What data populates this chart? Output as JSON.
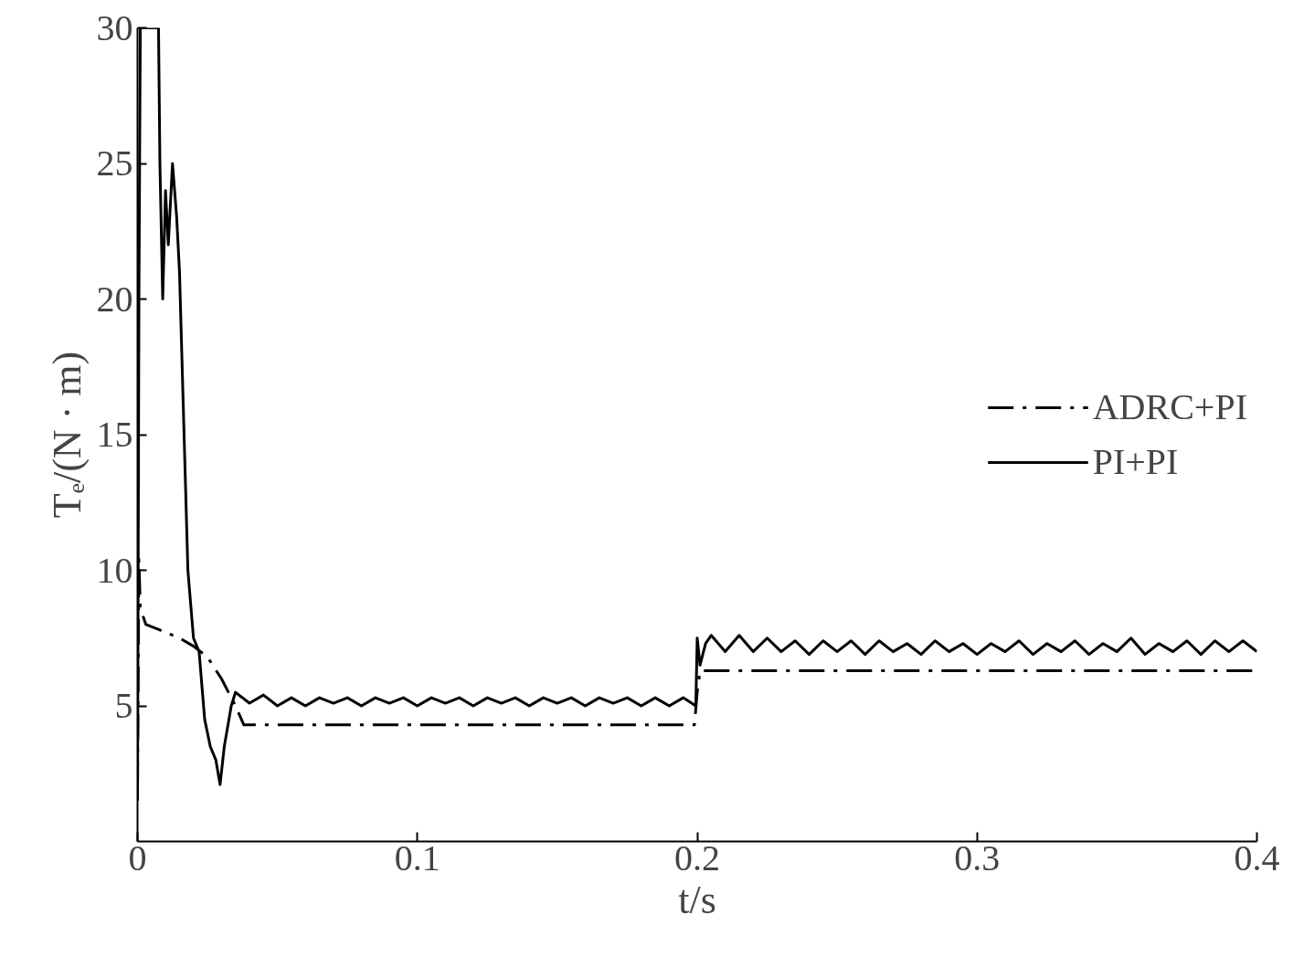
{
  "chart_data": {
    "type": "line",
    "xlabel": "t/s",
    "ylabel": "Tₑ/(N · m)",
    "xlim": [
      0,
      0.4
    ],
    "ylim": [
      0,
      30
    ],
    "xticks": [
      0,
      0.1,
      0.2,
      0.3,
      0.4
    ],
    "yticks": [
      5,
      10,
      15,
      20,
      25,
      30
    ],
    "grid": false,
    "legend": "right",
    "series": [
      {
        "name": "ADRC+PI",
        "color": "#000000",
        "line_style": "dashdot",
        "x": [
          0,
          0.0005,
          0.001,
          0.003,
          0.008,
          0.015,
          0.02,
          0.025,
          0.03,
          0.035,
          0.038,
          0.1,
          0.199,
          0.2,
          0.201,
          0.203,
          0.3,
          0.4
        ],
        "values": [
          2,
          10.4,
          8.6,
          8.0,
          7.8,
          7.5,
          7.2,
          6.8,
          6.0,
          5.0,
          4.3,
          4.3,
          4.3,
          5.5,
          6.3,
          6.3,
          6.3,
          6.3
        ]
      },
      {
        "name": "PI+PI",
        "color": "#000000",
        "line_style": "solid",
        "x": [
          0,
          0.0005,
          0.001,
          0.0075,
          0.008,
          0.009,
          0.01,
          0.011,
          0.0125,
          0.014,
          0.015,
          0.018,
          0.02,
          0.022,
          0.024,
          0.026,
          0.028,
          0.0295,
          0.031,
          0.0335,
          0.035,
          0.04,
          0.045,
          0.05,
          0.055,
          0.06,
          0.065,
          0.07,
          0.075,
          0.08,
          0.085,
          0.09,
          0.095,
          0.1,
          0.105,
          0.11,
          0.115,
          0.12,
          0.125,
          0.13,
          0.135,
          0.14,
          0.145,
          0.15,
          0.155,
          0.16,
          0.165,
          0.17,
          0.175,
          0.18,
          0.185,
          0.19,
          0.195,
          0.1995,
          0.2,
          0.201,
          0.203,
          0.205,
          0.21,
          0.215,
          0.22,
          0.225,
          0.23,
          0.235,
          0.24,
          0.245,
          0.25,
          0.255,
          0.26,
          0.265,
          0.27,
          0.275,
          0.28,
          0.285,
          0.29,
          0.295,
          0.3,
          0.305,
          0.31,
          0.315,
          0.32,
          0.325,
          0.33,
          0.335,
          0.34,
          0.345,
          0.35,
          0.355,
          0.36,
          0.365,
          0.37,
          0.375,
          0.38,
          0.385,
          0.39,
          0.395,
          0.4
        ],
        "values": [
          1.5,
          20,
          30,
          30,
          25,
          20,
          24,
          22,
          25,
          23,
          21,
          10,
          7.5,
          7,
          4.5,
          3.5,
          3,
          2.1,
          3.5,
          5,
          5.5,
          5.1,
          5.4,
          5.0,
          5.3,
          5.0,
          5.3,
          5.1,
          5.3,
          5.0,
          5.3,
          5.1,
          5.3,
          5.0,
          5.3,
          5.1,
          5.3,
          5.0,
          5.3,
          5.1,
          5.3,
          5.0,
          5.3,
          5.1,
          5.3,
          5.0,
          5.3,
          5.1,
          5.3,
          5.0,
          5.3,
          5.0,
          5.3,
          5.0,
          7.5,
          6.5,
          7.3,
          7.6,
          7.0,
          7.6,
          7.0,
          7.5,
          7.0,
          7.4,
          6.9,
          7.4,
          7.0,
          7.4,
          6.9,
          7.4,
          7.0,
          7.3,
          6.9,
          7.4,
          7.0,
          7.3,
          6.9,
          7.3,
          7.0,
          7.4,
          6.9,
          7.3,
          7.0,
          7.4,
          6.9,
          7.3,
          7.0,
          7.5,
          6.9,
          7.3,
          7.0,
          7.4,
          6.9,
          7.4,
          7.0,
          7.4,
          7.0
        ]
      }
    ]
  }
}
